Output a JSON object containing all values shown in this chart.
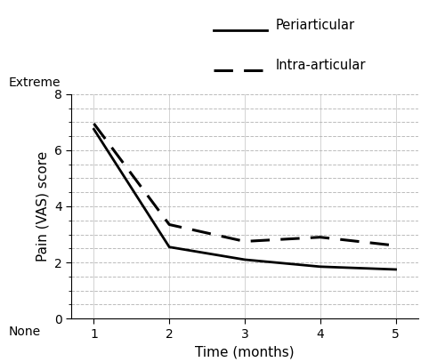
{
  "x": [
    1,
    2,
    3,
    4,
    5
  ],
  "periarticular": [
    6.75,
    2.55,
    2.1,
    1.85,
    1.75
  ],
  "intra_articular": [
    6.95,
    3.35,
    2.75,
    2.9,
    2.6
  ],
  "xlabel": "Time (months)",
  "ylabel": "Pain (VAS) score",
  "ylim": [
    0,
    8
  ],
  "xlim": [
    0.7,
    5.3
  ],
  "yticks_major": [
    0,
    2,
    4,
    6,
    8
  ],
  "xticks": [
    1,
    2,
    3,
    4,
    5
  ],
  "legend_periarticular": "Periarticular",
  "legend_intra": "Intra-articular",
  "label_extreme": "Extreme",
  "label_none": "None",
  "line_color": "#000000",
  "bg_color": "#ffffff",
  "grid_color_minor": "#bbbbbb",
  "grid_color_major": "#cccccc"
}
